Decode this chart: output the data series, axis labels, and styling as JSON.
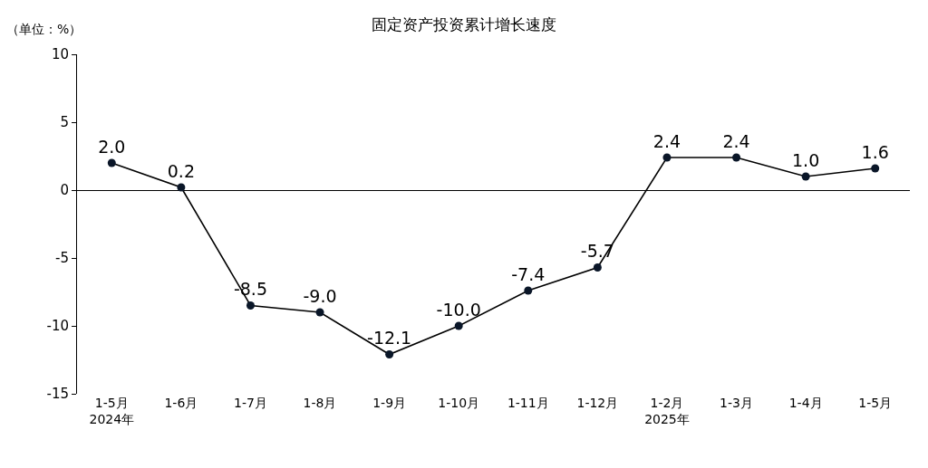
{
  "chart_data": {
    "type": "line",
    "title": "固定资产投资累计增长速度",
    "ylabel": "（单位：%）",
    "categories": [
      "1-5月\n2024年",
      "1-6月",
      "1-7月",
      "1-8月",
      "1-9月",
      "1-10月",
      "1-11月",
      "1-12月",
      "1-2月\n2025年",
      "1-3月",
      "1-4月",
      "1-5月"
    ],
    "series": [
      {
        "color": "#0a1628",
        "values": [
          2.0,
          0.2,
          -8.5,
          -9.0,
          -12.1,
          -10.0,
          -7.4,
          -5.7,
          2.4,
          2.4,
          1.0,
          1.6
        ],
        "value_labels": [
          "2.0",
          "0.2",
          "-8.5",
          "-9.0",
          "-12.1",
          "-10.0",
          "-7.4",
          "-5.7",
          "2.4",
          "2.4",
          "1.0",
          "1.6"
        ]
      }
    ],
    "ylim": [
      -15,
      10
    ],
    "yticks": [
      -15,
      -10,
      -5,
      0,
      5,
      10
    ],
    "marker": "circle",
    "line_style": "solid"
  }
}
